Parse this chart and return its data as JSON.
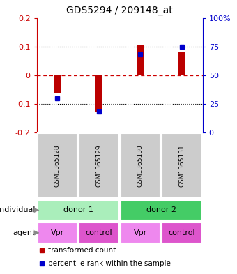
{
  "title": "GDS5294 / 209148_at",
  "samples": [
    "GSM1365128",
    "GSM1365129",
    "GSM1365130",
    "GSM1365131"
  ],
  "bar_values": [
    -0.065,
    -0.13,
    0.105,
    0.082
  ],
  "percentile_ranks": [
    30,
    18,
    68,
    75
  ],
  "ylim": [
    -0.2,
    0.2
  ],
  "yticks": [
    -0.2,
    -0.1,
    0.0,
    0.1,
    0.2
  ],
  "ytick_labels": [
    "-0.2",
    "-0.1",
    "0",
    "0.1",
    "0.2"
  ],
  "right_ytick_percents": [
    0,
    25,
    50,
    75,
    100
  ],
  "right_ytick_labels": [
    "0",
    "25",
    "50",
    "75",
    "100%"
  ],
  "bar_color": "#bb0000",
  "percentile_color": "#0000cc",
  "zero_line_color": "#cc0000",
  "dot_line_color": "#000000",
  "left_axis_color": "#cc0000",
  "right_axis_color": "#0000cc",
  "donor1_color": "#aaeebb",
  "donor2_color": "#44cc66",
  "vpr_color": "#ee88ee",
  "control_color": "#dd55cc",
  "sample_box_color": "#cccccc",
  "agents": [
    "Vpr",
    "control",
    "Vpr",
    "control"
  ],
  "legend_red": "transformed count",
  "legend_blue": "percentile rank within the sample",
  "bar_width": 0.18
}
